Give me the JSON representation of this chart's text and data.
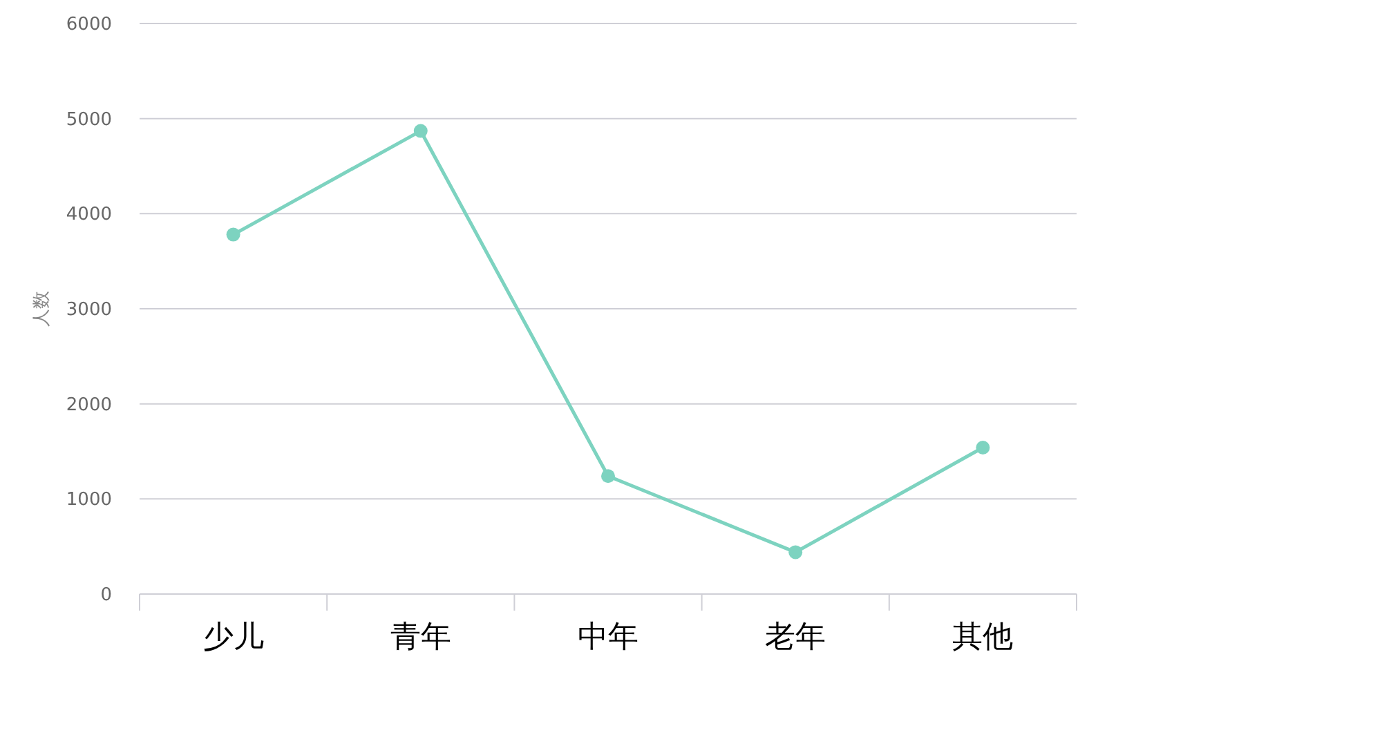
{
  "chart_data": {
    "type": "line",
    "ylabel": "人数",
    "categories": [
      "少儿",
      "青年",
      "中年",
      "老年",
      "其他"
    ],
    "series": [
      {
        "color": "#7dd3c0",
        "values": [
          3780,
          4870,
          1240,
          440,
          1540
        ]
      }
    ],
    "ylim": [
      0,
      6000
    ],
    "yticks": [
      0,
      1000,
      2000,
      3000,
      4000,
      5000,
      6000
    ],
    "grid": "y",
    "marker": "circle"
  }
}
